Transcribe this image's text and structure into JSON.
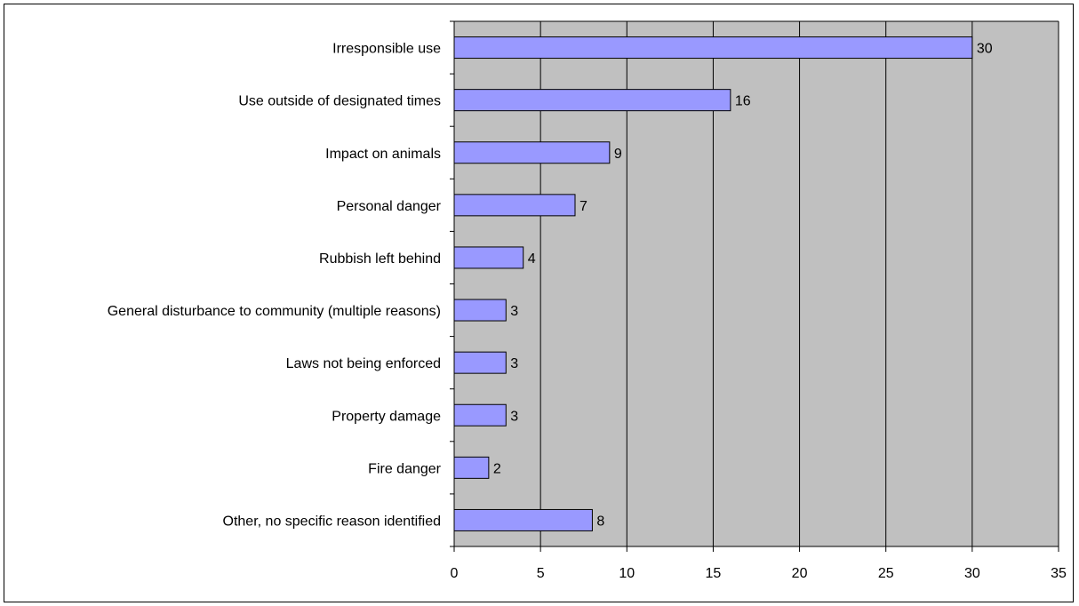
{
  "chart_data": {
    "type": "bar",
    "orientation": "horizontal",
    "categories": [
      "Irresponsible use",
      "Use outside of designated times",
      "Impact on animals",
      "Personal danger",
      "Rubbish left behind",
      "General disturbance to community (multiple reasons)",
      "Laws not being enforced",
      "Property damage",
      "Fire danger",
      "Other, no specific reason identified"
    ],
    "values": [
      30,
      16,
      9,
      7,
      4,
      3,
      3,
      3,
      2,
      8
    ],
    "title": "",
    "xlabel": "",
    "ylabel": "",
    "xlim": [
      0,
      35
    ],
    "xticks": [
      0,
      5,
      10,
      15,
      20,
      25,
      30,
      35
    ],
    "grid": true,
    "legend": "none",
    "data_labels": true
  },
  "colors": {
    "plot_background": "#c0c0c0",
    "bar_fill": "#9999ff",
    "bar_stroke": "#000000",
    "gridline": "#000000"
  }
}
